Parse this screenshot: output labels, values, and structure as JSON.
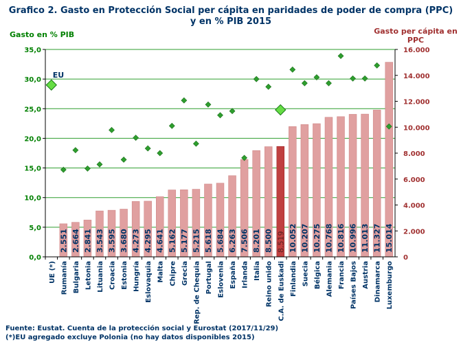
{
  "chart_data": {
    "type": "bar",
    "title_line1": "Grafico 2. Gasto en Protección Social per cápita en paridades de poder de compra (PPC)",
    "title_line2": "y en % PIB 2015",
    "left_axis_title": "Gasto en % PIB",
    "right_axis_title_line1": "Gasto per cápita en",
    "right_axis_title_line2": "PPC",
    "left_ylim": [
      0,
      35
    ],
    "right_ylim": [
      0,
      16000
    ],
    "left_ticks": [
      "0,0",
      "5,0",
      "10,0",
      "15,0",
      "20,0",
      "25,0",
      "30,0",
      "35,0"
    ],
    "right_ticks": [
      "0",
      "2.000",
      "4.000",
      "6.000",
      "8.000",
      "10.000",
      "12.000",
      "14.000",
      "16.000"
    ],
    "categories": [
      "UE (*)",
      "Rumanía",
      "Bulgaria",
      "Letonia",
      "Lituania",
      "Croacia",
      "Estonia",
      "Hungría",
      "Eslovaquia",
      "Malta",
      "Chipre",
      "Grecia",
      "Rep. de Chequia",
      "Portugal",
      "Eslovenia",
      "España",
      "Irlanda",
      "Italia",
      "Reino unido",
      "C.A. de Euskadi",
      "Finlandia",
      "Suecia",
      "Bélgica",
      "Alemania",
      "Francia",
      "Países Bajos",
      "Austria",
      "Dinamarca",
      "Luxemburgo"
    ],
    "series": [
      {
        "name": "Gasto per cápita en PPC",
        "axis": "right",
        "values": [
          null,
          2551,
          2664,
          2841,
          3543,
          3595,
          3680,
          4273,
          4295,
          4641,
          5162,
          5177,
          5215,
          5618,
          5684,
          6263,
          7506,
          8201,
          8500,
          8519,
          10052,
          10207,
          10275,
          10768,
          10816,
          10996,
          11013,
          11327,
          15014
        ],
        "labels": [
          "",
          "2.551",
          "2.664",
          "2.841",
          "3.543",
          "3.595",
          "3.680",
          "4.273",
          "4.295",
          "4.641",
          "5.162",
          "5.177",
          "5.215",
          "5.618",
          "5.684",
          "6.263",
          "7.506",
          "8.201",
          "8.500",
          "8.519",
          "10.052",
          "10.207",
          "10.275",
          "10.768",
          "10.816",
          "10.996",
          "11.013",
          "11.327",
          "15.014"
        ],
        "color": "#e0a0a0",
        "highlight_index": 19,
        "highlight_color": "#c04040"
      },
      {
        "name": "Gasto en % PIB",
        "axis": "left",
        "values": [
          29.0,
          14.7,
          18.0,
          14.9,
          15.6,
          21.4,
          16.4,
          20.1,
          18.3,
          17.5,
          22.1,
          26.4,
          19.1,
          25.7,
          23.9,
          24.6,
          16.7,
          30.0,
          28.7,
          24.8,
          31.6,
          29.3,
          30.3,
          29.3,
          33.9,
          30.1,
          30.1,
          32.3,
          22.0
        ],
        "color": "#2e9e2e",
        "highlight_indices": [
          0,
          19
        ],
        "highlight_color": "#66dd44"
      }
    ],
    "eu_label": "EU",
    "grid": true
  },
  "footnotes": {
    "line1": "Fuente: Eustat. Cuenta de la protección social y Eurostat (2017/11/29)",
    "line2": "(*)EU agregado excluye Polonia (no hay datos disponibles 2015)"
  }
}
